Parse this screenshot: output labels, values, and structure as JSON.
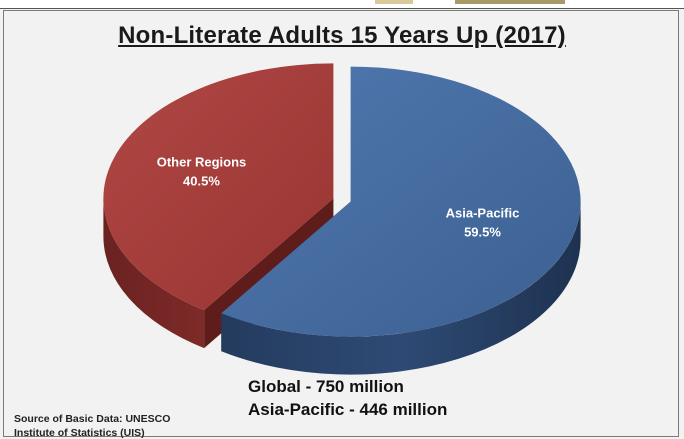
{
  "chart_data": {
    "type": "pie",
    "title": "Non-Literate Adults 15 Years Up (2017)",
    "slices": [
      {
        "label": "Asia-Pacific",
        "value": 59.5,
        "display": "59.5%",
        "color": "#4a6fa1"
      },
      {
        "label": "Other Regions",
        "value": 40.5,
        "display": "40.5%",
        "color": "#a83c3a"
      }
    ],
    "style": "3d-exploded"
  },
  "footnotes": {
    "global": "Global - 750 million",
    "asia": "Asia-Pacific - 446 million"
  },
  "source": {
    "line1": "Source of Basic Data: UNESCO",
    "line2": "Institute of Statistics (UIS)"
  }
}
